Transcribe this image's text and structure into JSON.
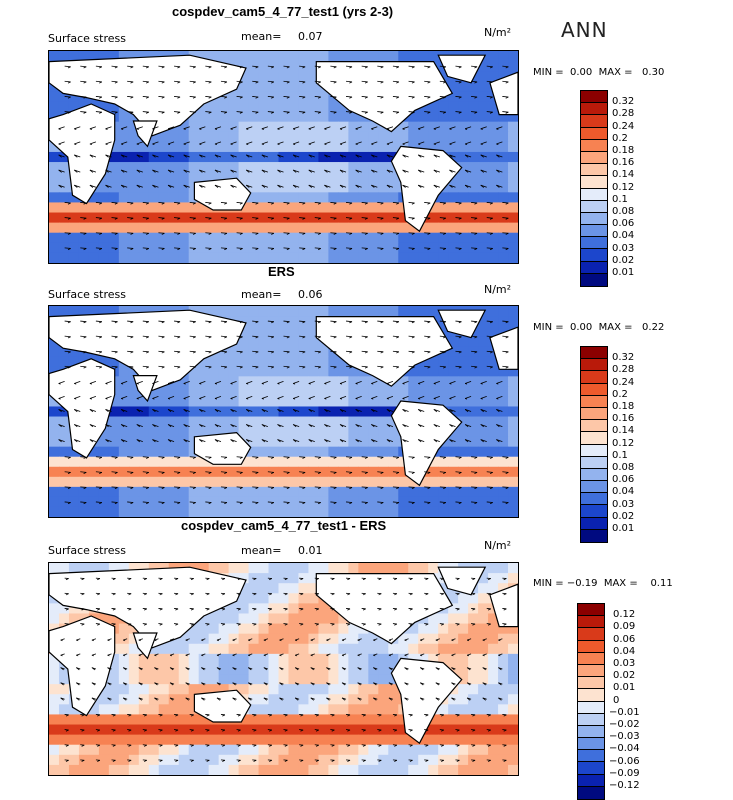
{
  "season": "ANN",
  "units": "N/m²",
  "panels": [
    {
      "title": "cospdev_cam5_4_77_test1 (yrs 2-3)",
      "variable": "Surface stress",
      "mean_label": "mean=",
      "mean_value": "0.07",
      "min_label": "MIN =",
      "min_value": "0.00",
      "max_label": "MAX =",
      "max_value": "0.30",
      "colorbar_ticks": [
        "0.32",
        "0.28",
        "0.24",
        "0.2",
        "0.18",
        "0.16",
        "0.14",
        "0.12",
        "0.1",
        "0.08",
        "0.06",
        "0.04",
        "0.03",
        "0.02",
        "0.01"
      ],
      "colorbar_colors": [
        "#8b0000",
        "#b91a0a",
        "#d93a1a",
        "#ee5a2c",
        "#f78252",
        "#fba57c",
        "#fdc7a8",
        "#fde3d0",
        "#e4ecfa",
        "#bcd0f4",
        "#93b3ee",
        "#6b94e6",
        "#3f6fdc",
        "#1c46cc",
        "#0a22b0",
        "#000a80"
      ]
    },
    {
      "title": "ERS",
      "variable": "Surface stress",
      "mean_label": "mean=",
      "mean_value": "0.06",
      "min_label": "MIN =",
      "min_value": "0.00",
      "max_label": "MAX =",
      "max_value": "0.22",
      "colorbar_ticks": [
        "0.32",
        "0.28",
        "0.24",
        "0.2",
        "0.18",
        "0.16",
        "0.14",
        "0.12",
        "0.1",
        "0.08",
        "0.06",
        "0.04",
        "0.03",
        "0.02",
        "0.01"
      ],
      "colorbar_colors": [
        "#8b0000",
        "#b91a0a",
        "#d93a1a",
        "#ee5a2c",
        "#f78252",
        "#fba57c",
        "#fdc7a8",
        "#fde3d0",
        "#e4ecfa",
        "#bcd0f4",
        "#93b3ee",
        "#6b94e6",
        "#3f6fdc",
        "#1c46cc",
        "#0a22b0",
        "#000a80"
      ]
    },
    {
      "title": "cospdev_cam5_4_77_test1 - ERS",
      "variable": "Surface stress",
      "mean_label": "mean=",
      "mean_value": "0.01",
      "min_label": "MIN =",
      "min_value": "−0.19",
      "max_label": "MAX =",
      "max_value": "0.11",
      "colorbar_ticks": [
        "0.12",
        "0.09",
        "0.06",
        "0.04",
        "0.03",
        "0.02",
        "0.01",
        "0",
        "−0.01",
        "−0.02",
        "−0.03",
        "−0.04",
        "−0.06",
        "−0.09",
        "−0.12"
      ],
      "colorbar_colors": [
        "#8b0000",
        "#b91a0a",
        "#d93a1a",
        "#ee5a2c",
        "#f78252",
        "#fba57c",
        "#fdc7a8",
        "#fde3d0",
        "#e4ecfa",
        "#bcd0f4",
        "#93b3ee",
        "#6b94e6",
        "#3f6fdc",
        "#1c46cc",
        "#0a22b0",
        "#000a80"
      ]
    }
  ],
  "chart_data": [
    {
      "type": "heatmap",
      "title": "cospdev_cam5_4_77_test1 (yrs 2-3)",
      "subtitle": "Surface stress",
      "units": "N/m²",
      "mean": 0.07,
      "min": 0.0,
      "max": 0.3,
      "colorbar_levels": [
        0.01,
        0.02,
        0.03,
        0.04,
        0.06,
        0.08,
        0.1,
        0.12,
        0.14,
        0.16,
        0.18,
        0.2,
        0.24,
        0.28,
        0.32
      ],
      "features": "vector arrows of wind stress over global ocean; strongest (red) in Southern Ocean westerlies"
    },
    {
      "type": "heatmap",
      "title": "ERS",
      "subtitle": "Surface stress",
      "units": "N/m²",
      "mean": 0.06,
      "min": 0.0,
      "max": 0.22,
      "colorbar_levels": [
        0.01,
        0.02,
        0.03,
        0.04,
        0.06,
        0.08,
        0.1,
        0.12,
        0.14,
        0.16,
        0.18,
        0.2,
        0.24,
        0.28,
        0.32
      ]
    },
    {
      "type": "heatmap",
      "title": "cospdev_cam5_4_77_test1 - ERS",
      "subtitle": "Surface stress",
      "units": "N/m²",
      "mean": 0.01,
      "min": -0.19,
      "max": 0.11,
      "colorbar_levels": [
        -0.12,
        -0.09,
        -0.06,
        -0.04,
        -0.03,
        -0.02,
        -0.01,
        0,
        0.01,
        0.02,
        0.03,
        0.04,
        0.06,
        0.09,
        0.12
      ]
    }
  ]
}
